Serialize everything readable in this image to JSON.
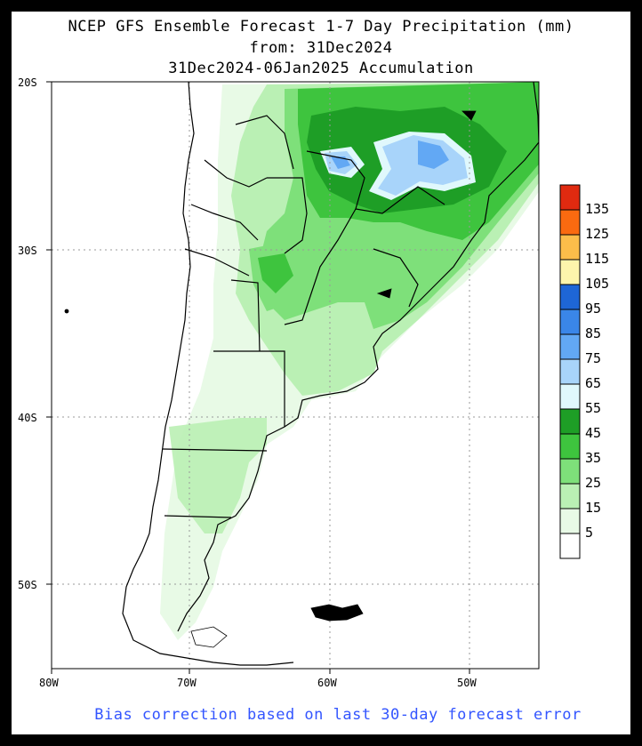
{
  "title": {
    "line1": "NCEP GFS Ensemble Forecast 1-7 Day Precipitation (mm)",
    "line2": "from: 31Dec2024",
    "line3": "31Dec2024-06Jan2025 Accumulation"
  },
  "footer": "Bias correction based on last 30-day forecast error",
  "axes": {
    "lat_labels": [
      "20S",
      "30S",
      "40S",
      "50S"
    ],
    "lon_labels": [
      "80W",
      "70W",
      "60W",
      "50W"
    ],
    "lat_range": [
      -55,
      -20
    ],
    "lon_range": [
      -80,
      -45
    ]
  },
  "legend": {
    "labels": [
      "135",
      "125",
      "115",
      "105",
      "95",
      "85",
      "75",
      "65",
      "55",
      "45",
      "35",
      "25",
      "15",
      "5"
    ],
    "colors": [
      "#e02a10",
      "#fa6a10",
      "#fcbd4a",
      "#fdf5ac",
      "#1e66d6",
      "#3a86e8",
      "#62a8f4",
      "#a8d4fa",
      "#e0f8fc",
      "#1e9e26",
      "#3ec43e",
      "#7ee07a",
      "#baf0b4",
      "#e8fae6",
      "#ffffff"
    ]
  }
}
